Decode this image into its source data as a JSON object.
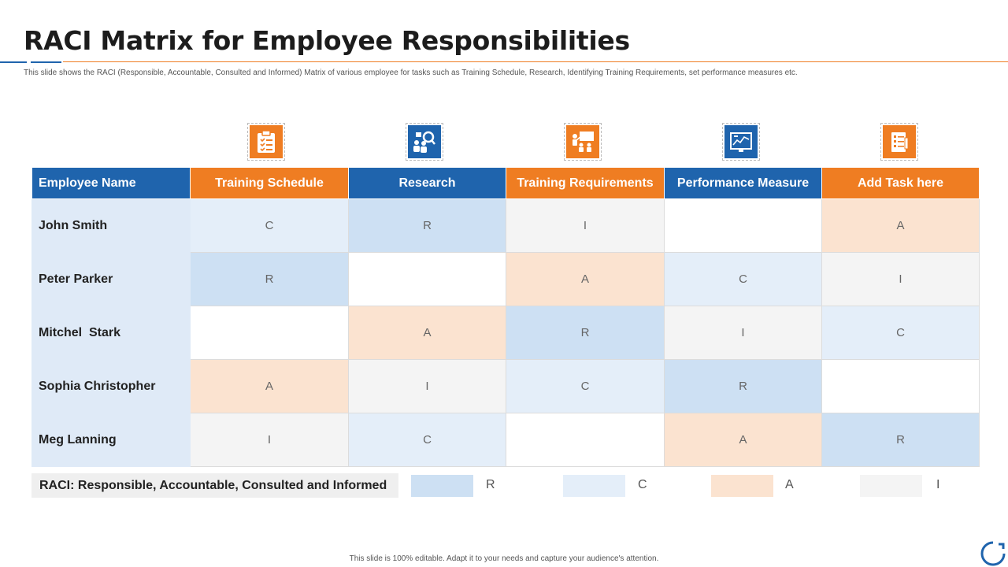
{
  "title": "RACI Matrix for Employee Responsibilities",
  "subtitle": "This slide shows the RACI (Responsible, Accountable, Consulted and Informed) Matrix of various employee for tasks such as Training Schedule, Research, Identifying Training Requirements,  set performance measures etc.",
  "table": {
    "name_header": "Employee Name",
    "columns": [
      {
        "label": "Training Schedule",
        "icon": "clipboard-checklist-icon",
        "color": "#ef7d22"
      },
      {
        "label": "Research",
        "icon": "team-search-icon",
        "color": "#1f64ad"
      },
      {
        "label": "Training Requirements",
        "icon": "presentation-training-icon",
        "color": "#ef7d22"
      },
      {
        "label": "Performance Measure",
        "icon": "performance-chart-icon",
        "color": "#1f64ad"
      },
      {
        "label": "Add Task here",
        "icon": "task-list-icon",
        "color": "#ef7d22"
      }
    ],
    "rows": [
      {
        "name": "John Smith",
        "cells": [
          "C",
          "R",
          "I",
          "",
          "A"
        ]
      },
      {
        "name": "Peter Parker",
        "cells": [
          "R",
          "",
          "A",
          "C",
          "I"
        ]
      },
      {
        "name": "Mitchel  Stark",
        "cells": [
          "",
          "A",
          "R",
          "I",
          "C"
        ]
      },
      {
        "name": "Sophia Christopher",
        "cells": [
          "A",
          "I",
          "C",
          "R",
          ""
        ]
      },
      {
        "name": "Meg Lanning",
        "cells": [
          "I",
          "C",
          "",
          "A",
          "R"
        ]
      }
    ]
  },
  "legend": {
    "title": "RACI: Responsible, Accountable, Consulted and Informed",
    "items": [
      {
        "letter": "R",
        "color": "#cde0f3"
      },
      {
        "letter": "C",
        "color": "#e4eef9"
      },
      {
        "letter": "A",
        "color": "#fbe3d0"
      },
      {
        "letter": "I",
        "color": "#f4f4f4"
      }
    ]
  },
  "footer": "This slide is 100% editable. Adapt it to your needs and capture your audience's attention.",
  "colors": {
    "orange": "#ef7d22",
    "blue": "#1f64ad"
  }
}
